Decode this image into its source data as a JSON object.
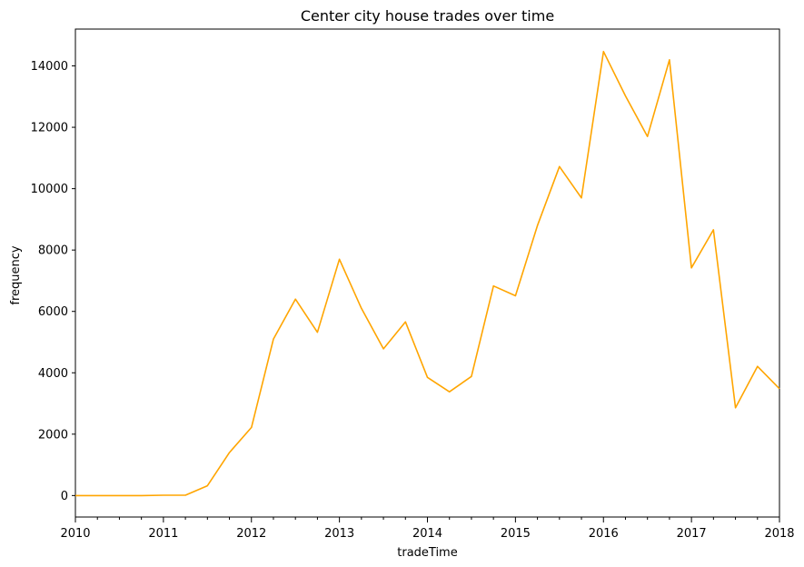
{
  "chart_data": {
    "type": "line",
    "title": "Center city house trades over time",
    "xlabel": "tradeTime",
    "ylabel": "frequency",
    "x_ticks": [
      "2010",
      "2011",
      "2012",
      "2013",
      "2014",
      "2015",
      "2016",
      "2017",
      "2018"
    ],
    "y_ticks": [
      "0",
      "2000",
      "4000",
      "6000",
      "8000",
      "10000",
      "12000",
      "14000"
    ],
    "ylim": [
      -700,
      15200
    ],
    "xlim": [
      "2010-01",
      "2018-01"
    ],
    "grid": false,
    "series": [
      {
        "color": "#ffa500",
        "x": [
          "2010-01",
          "2010-04",
          "2010-07",
          "2010-10",
          "2011-01",
          "2011-04",
          "2011-07",
          "2011-10",
          "2012-01",
          "2012-04",
          "2012-07",
          "2012-10",
          "2013-01",
          "2013-04",
          "2013-07",
          "2013-10",
          "2014-01",
          "2014-04",
          "2014-07",
          "2014-10",
          "2015-01",
          "2015-04",
          "2015-07",
          "2015-10",
          "2016-01",
          "2016-04",
          "2016-07",
          "2016-10",
          "2017-01",
          "2017-04",
          "2017-07",
          "2017-10",
          "2018-01"
        ],
        "values": [
          0,
          0,
          0,
          0,
          10,
          10,
          320,
          1400,
          2220,
          5100,
          6400,
          5320,
          7700,
          6100,
          4780,
          5660,
          3850,
          3380,
          3880,
          6830,
          6510,
          8800,
          10720,
          9700,
          14470,
          13020,
          11700,
          14200,
          7420,
          8660,
          2860,
          4210,
          3480
        ]
      }
    ]
  }
}
